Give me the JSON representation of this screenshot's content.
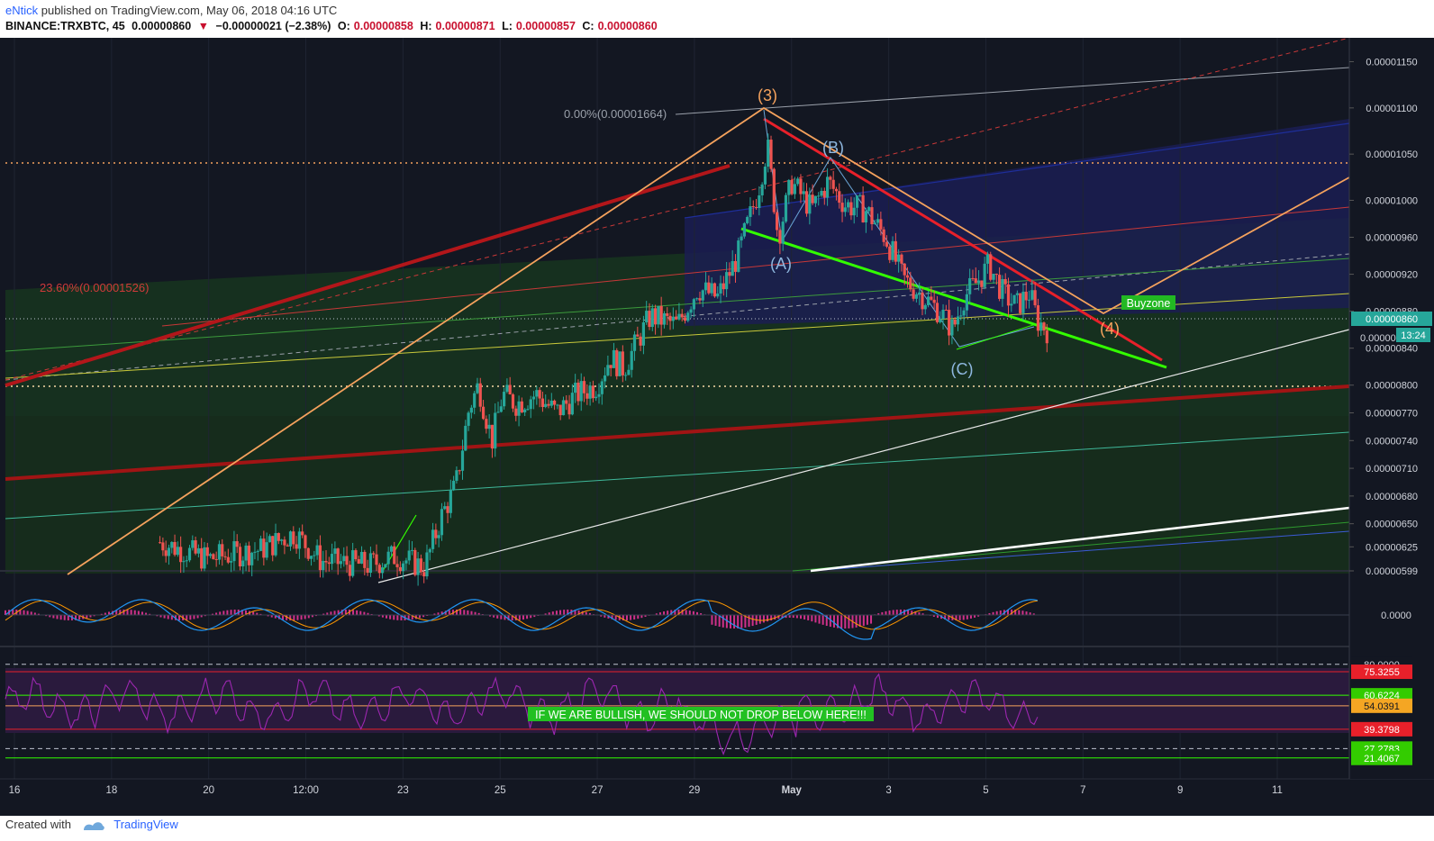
{
  "header": {
    "author": "eNtick",
    "published": " published on TradingView.com, May 06, 2018 04:16 UTC",
    "symbol": "BINANCE:TRXBTC, 45",
    "last": "0.00000860",
    "change_arrow": "▼",
    "change": "−0.00000021 (−2.38%)",
    "o_label": "O:",
    "o_val": "0.00000858",
    "h_label": "H:",
    "h_val": "0.00000871",
    "l_label": "L:",
    "l_val": "0.00000857",
    "c_label": "C:",
    "c_val": "0.00000860"
  },
  "footer": {
    "created": "Created with",
    "brand": "TradingView"
  },
  "colors": {
    "background": "#131722",
    "candle_up": "#26a69a",
    "candle_down": "#ef5350",
    "accent_orange": "#f5a25d",
    "accent_green": "#33ff00",
    "accent_red": "#e8202a",
    "macd": "#2196f3",
    "signal": "#ff9800",
    "rsi": "#9c27b0"
  },
  "chart_data": {
    "type": "candlestick",
    "x_ticks": [
      "16",
      "18",
      "20",
      "12:00",
      "23",
      "25",
      "27",
      "29",
      "May",
      "3",
      "5",
      "7",
      "9",
      "11"
    ],
    "price_ticks": [
      "0.00001150",
      "0.00001100",
      "0.00001050",
      "0.00001000",
      "0.00000960",
      "0.00000920",
      "0.00000880",
      "0.00000840",
      "0.00000800",
      "0.00000770",
      "0.00000740",
      "0.00000710",
      "0.00000680",
      "0.00000650",
      "0.00000625",
      "0.00000599"
    ],
    "price_range": [
      5.99e-06,
      1.17e-05
    ],
    "last_price_label": "0.00000860",
    "last_price_partial": "0.00000",
    "countdown": "13:24",
    "price_path": [
      [
        0.115,
        6.3e-06
      ],
      [
        0.15,
        6.12e-06
      ],
      [
        0.19,
        6.22e-06
      ],
      [
        0.215,
        6.4e-06
      ],
      [
        0.235,
        6.1e-06
      ],
      [
        0.27,
        6.05e-06
      ],
      [
        0.29,
        6.15e-06
      ],
      [
        0.312,
        6.03e-06
      ],
      [
        0.325,
        6.6e-06
      ],
      [
        0.335,
        6.9e-06
      ],
      [
        0.345,
        7.75e-06
      ],
      [
        0.352,
        8e-06
      ],
      [
        0.362,
        7.4e-06
      ],
      [
        0.37,
        7.9e-06
      ],
      [
        0.38,
        7.8e-06
      ],
      [
        0.395,
        7.9e-06
      ],
      [
        0.41,
        7.7e-06
      ],
      [
        0.425,
        7.9e-06
      ],
      [
        0.44,
        8e-06
      ],
      [
        0.45,
        8.3e-06
      ],
      [
        0.46,
        8.18e-06
      ],
      [
        0.48,
        8.75e-06
      ],
      [
        0.5,
        8.65e-06
      ],
      [
        0.515,
        9.05e-06
      ],
      [
        0.53,
        8.95e-06
      ],
      [
        0.545,
        9.4e-06
      ],
      [
        0.56,
        1.01e-05
      ],
      [
        0.567,
        1.06e-05
      ],
      [
        0.575,
        9.6e-06
      ],
      [
        0.585,
        1.02e-05
      ],
      [
        0.6,
        9.9e-06
      ],
      [
        0.612,
        1.02e-05
      ],
      [
        0.625,
        9.95e-06
      ],
      [
        0.64,
        9.9e-06
      ],
      [
        0.655,
        9.6e-06
      ],
      [
        0.668,
        9.15e-06
      ],
      [
        0.68,
        9e-06
      ],
      [
        0.695,
        8.8e-06
      ],
      [
        0.705,
        8.6e-06
      ],
      [
        0.713,
        8.95e-06
      ],
      [
        0.722,
        9.1e-06
      ],
      [
        0.732,
        9.3e-06
      ],
      [
        0.742,
        9e-06
      ],
      [
        0.752,
        8.85e-06
      ],
      [
        0.762,
        9e-06
      ],
      [
        0.768,
        8.7e-06
      ],
      [
        0.775,
        8.6e-06
      ]
    ],
    "labels": [
      "(3)",
      "(B)",
      "(A)",
      "(C)",
      "(4)"
    ],
    "fib_labels": [
      "0.00%(0.00001664)",
      "23.60%(0.00001526)"
    ],
    "tag": "Buyzone",
    "macd_zero_label": "0.0000",
    "rsi_labels": [
      "80.0000",
      "75.3255",
      "60.6224",
      "54.0391",
      "39.3798",
      "27.2783",
      "21.4067"
    ],
    "rsi_levels": [
      80.0,
      75.3255,
      60.6224,
      54.0391,
      39.3798,
      27.2783,
      21.4067
    ],
    "annotation": "IF WE ARE BULLISH, WE SHOULD NOT DROP BELOW HERE!!!"
  }
}
